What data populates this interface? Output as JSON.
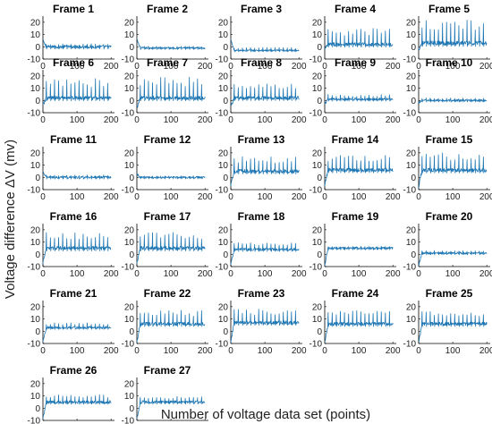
{
  "chart_data": {
    "type": "line",
    "xlabel": "Number of voltage data set (points)",
    "ylabel": "Voltage difference ΔV  (mv)",
    "xlim": [
      0,
      210
    ],
    "ylim": [
      -10,
      25
    ],
    "xticks": [
      0,
      100,
      200
    ],
    "yticks": [
      -10,
      0,
      10,
      20
    ],
    "series_color": "#1f77b4",
    "panels": [
      {
        "title": "Frame 1",
        "start": 5,
        "baseline": 0,
        "spike": 2,
        "noise": 1.2,
        "spikeAmp": 1.2
      },
      {
        "title": "Frame 2",
        "start": 6,
        "baseline": -1,
        "spike": 1,
        "noise": 0.8,
        "spikeAmp": 0.7
      },
      {
        "title": "Frame 3",
        "start": 6,
        "baseline": -3,
        "spike": 1,
        "noise": 0.7,
        "spikeAmp": 0.6
      },
      {
        "title": "Frame 4",
        "start": -2,
        "baseline": 2,
        "spike": 15,
        "noise": 1.5,
        "spikeAmp": 1.0
      },
      {
        "title": "Frame 5",
        "start": -2,
        "baseline": 3,
        "spike": 20,
        "noise": 1.8,
        "spikeAmp": 1.1
      },
      {
        "title": "Frame 6",
        "start": -4,
        "baseline": 2,
        "spike": 18,
        "noise": 1.5,
        "spikeAmp": 1.0
      },
      {
        "title": "Frame 7",
        "start": -6,
        "baseline": 2,
        "spike": 19,
        "noise": 1.5,
        "spikeAmp": 1.0
      },
      {
        "title": "Frame 8",
        "start": -5,
        "baseline": 2,
        "spike": 16,
        "noise": 1.4,
        "spikeAmp": 1.0
      },
      {
        "title": "Frame 9",
        "start": -3,
        "baseline": 1,
        "spike": 6,
        "noise": 1.0,
        "spikeAmp": 0.8
      },
      {
        "title": "Frame 10",
        "start": -2,
        "baseline": 0,
        "spike": 3,
        "noise": 0.8,
        "spikeAmp": 0.7
      },
      {
        "title": "Frame 11",
        "start": 4,
        "baseline": 0,
        "spike": 3,
        "noise": 0.9,
        "spikeAmp": 0.7
      },
      {
        "title": "Frame 12",
        "start": 3,
        "baseline": 0,
        "spike": 2,
        "noise": 0.8,
        "spikeAmp": 0.6
      },
      {
        "title": "Frame 13",
        "start": -6,
        "baseline": 5,
        "spike": 17,
        "noise": 1.5,
        "spikeAmp": 1.0
      },
      {
        "title": "Frame 14",
        "start": -6,
        "baseline": 6,
        "spike": 18,
        "noise": 1.5,
        "spikeAmp": 1.0
      },
      {
        "title": "Frame 15",
        "start": -8,
        "baseline": 6,
        "spike": 20,
        "noise": 1.6,
        "spikeAmp": 1.0
      },
      {
        "title": "Frame 16",
        "start": -7,
        "baseline": 5,
        "spike": 18,
        "noise": 1.5,
        "spikeAmp": 1.0
      },
      {
        "title": "Frame 17",
        "start": -7,
        "baseline": 5,
        "spike": 18,
        "noise": 1.5,
        "spikeAmp": 1.0
      },
      {
        "title": "Frame 18",
        "start": -8,
        "baseline": 4,
        "spike": 10,
        "noise": 1.1,
        "spikeAmp": 0.9
      },
      {
        "title": "Frame 19",
        "start": -9,
        "baseline": 5,
        "spike": 7,
        "noise": 0.9,
        "spikeAmp": 0.8
      },
      {
        "title": "Frame 20",
        "start": -9,
        "baseline": 1,
        "spike": 4,
        "noise": 0.9,
        "spikeAmp": 0.7
      },
      {
        "title": "Frame 21",
        "start": -9,
        "baseline": 3,
        "spike": 8,
        "noise": 1.0,
        "spikeAmp": 0.8
      },
      {
        "title": "Frame 22",
        "start": -9,
        "baseline": 6,
        "spike": 17,
        "noise": 1.4,
        "spikeAmp": 1.0
      },
      {
        "title": "Frame 23",
        "start": -9,
        "baseline": 7,
        "spike": 18,
        "noise": 1.4,
        "spikeAmp": 1.0
      },
      {
        "title": "Frame 24",
        "start": -9,
        "baseline": 6,
        "spike": 19,
        "noise": 1.4,
        "spikeAmp": 1.0
      },
      {
        "title": "Frame 25",
        "start": -9,
        "baseline": 6,
        "spike": 17,
        "noise": 1.4,
        "spikeAmp": 1.0
      },
      {
        "title": "Frame 26",
        "start": -9,
        "baseline": 5,
        "spike": 12,
        "noise": 1.2,
        "spikeAmp": 0.9
      },
      {
        "title": "Frame 27",
        "start": -9,
        "baseline": 5,
        "spike": 10,
        "noise": 1.1,
        "spikeAmp": 0.9
      }
    ]
  }
}
